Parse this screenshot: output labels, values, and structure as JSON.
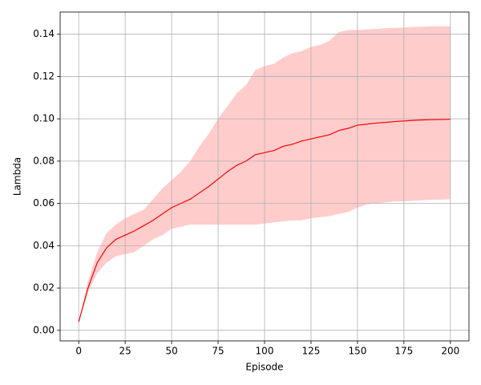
{
  "chart_data": {
    "type": "line",
    "xlabel": "Episode",
    "ylabel": "Lambda",
    "x": [
      0,
      5,
      10,
      15,
      20,
      25,
      30,
      35,
      40,
      45,
      50,
      55,
      60,
      65,
      70,
      75,
      80,
      85,
      90,
      95,
      100,
      105,
      110,
      115,
      120,
      125,
      130,
      135,
      140,
      145,
      150,
      155,
      160,
      165,
      170,
      175,
      180,
      185,
      190,
      195,
      200
    ],
    "values": [
      0.004,
      0.02,
      0.032,
      0.039,
      0.043,
      0.045,
      0.047,
      0.0495,
      0.052,
      0.055,
      0.058,
      0.06,
      0.062,
      0.065,
      0.068,
      0.0715,
      0.075,
      0.078,
      0.08,
      0.083,
      0.084,
      0.085,
      0.087,
      0.088,
      0.0895,
      0.0905,
      0.0915,
      0.0925,
      0.0945,
      0.0955,
      0.097,
      0.0975,
      0.098,
      0.0983,
      0.0987,
      0.099,
      0.0993,
      0.0995,
      0.0996,
      0.0997,
      0.0998
    ],
    "upper": [
      0.004,
      0.023,
      0.037,
      0.046,
      0.05,
      0.053,
      0.055,
      0.057,
      0.062,
      0.067,
      0.071,
      0.075,
      0.08,
      0.087,
      0.093,
      0.1,
      0.106,
      0.112,
      0.116,
      0.123,
      0.125,
      0.126,
      0.129,
      0.131,
      0.132,
      0.134,
      0.135,
      0.137,
      0.141,
      0.142,
      0.142,
      0.1423,
      0.1425,
      0.1428,
      0.143,
      0.1432,
      0.1435,
      0.1436,
      0.1437,
      0.1437,
      0.1437
    ],
    "lower": [
      0.004,
      0.018,
      0.027,
      0.032,
      0.035,
      0.036,
      0.037,
      0.04,
      0.043,
      0.045,
      0.048,
      0.049,
      0.05,
      0.05,
      0.05,
      0.05,
      0.05,
      0.05,
      0.05,
      0.05,
      0.0505,
      0.051,
      0.0515,
      0.052,
      0.052,
      0.053,
      0.0535,
      0.054,
      0.055,
      0.056,
      0.058,
      0.0595,
      0.06,
      0.0605,
      0.061,
      0.061,
      0.0613,
      0.0615,
      0.0617,
      0.0618,
      0.062
    ],
    "color": "#ff0000",
    "band_color": "#ffcccc",
    "xlim": [
      -10,
      210
    ],
    "ylim": [
      -0.005,
      0.1505
    ],
    "xticks": [
      0,
      25,
      50,
      75,
      100,
      125,
      150,
      175,
      200
    ],
    "yticks": [
      {
        "value": 0,
        "label": "0.00"
      },
      0.02,
      0.04,
      0.06,
      0.08,
      {
        "value": 0.1,
        "label": "0.10"
      },
      0.12,
      0.14
    ],
    "grid": true
  }
}
